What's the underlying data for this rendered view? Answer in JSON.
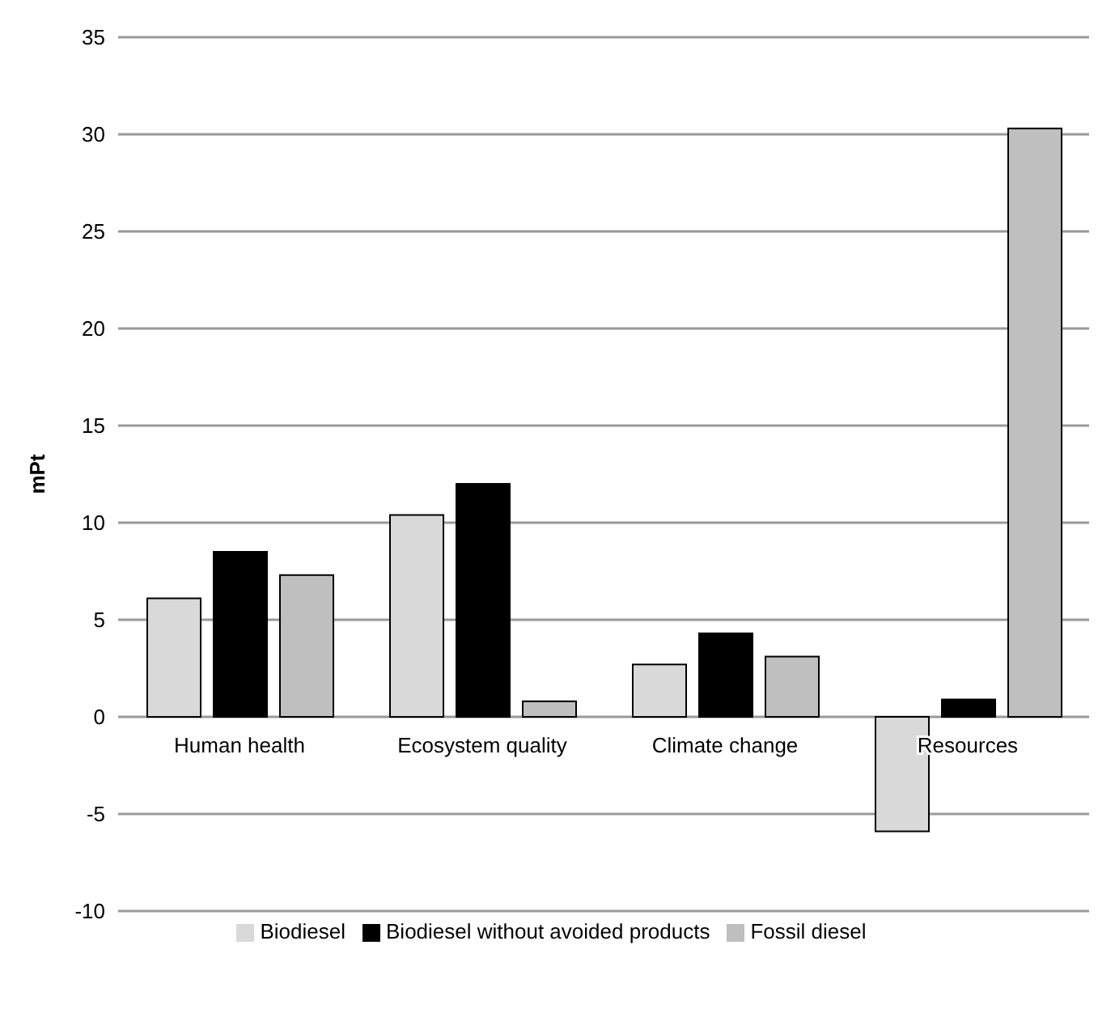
{
  "chart_data": {
    "type": "bar",
    "ylabel": "mPt",
    "categories": [
      "Human health",
      "Ecosystem quality",
      "Climate change",
      "Resources"
    ],
    "series": [
      {
        "name": "Biodiesel",
        "color": "#d9d9d9",
        "values": [
          6.1,
          10.4,
          2.7,
          -5.9
        ]
      },
      {
        "name": "Biodiesel without  avoided products",
        "color": "#000000",
        "values": [
          8.5,
          12.0,
          4.3,
          0.9
        ]
      },
      {
        "name": "Fossil diesel",
        "color": "#bfbfbf",
        "values": [
          7.3,
          0.8,
          3.1,
          30.3
        ]
      }
    ],
    "ylim": [
      -10,
      35
    ],
    "yticks": [
      -10,
      -5,
      0,
      5,
      10,
      15,
      20,
      25,
      30,
      35
    ],
    "grid": "y",
    "legend": "bottom"
  }
}
